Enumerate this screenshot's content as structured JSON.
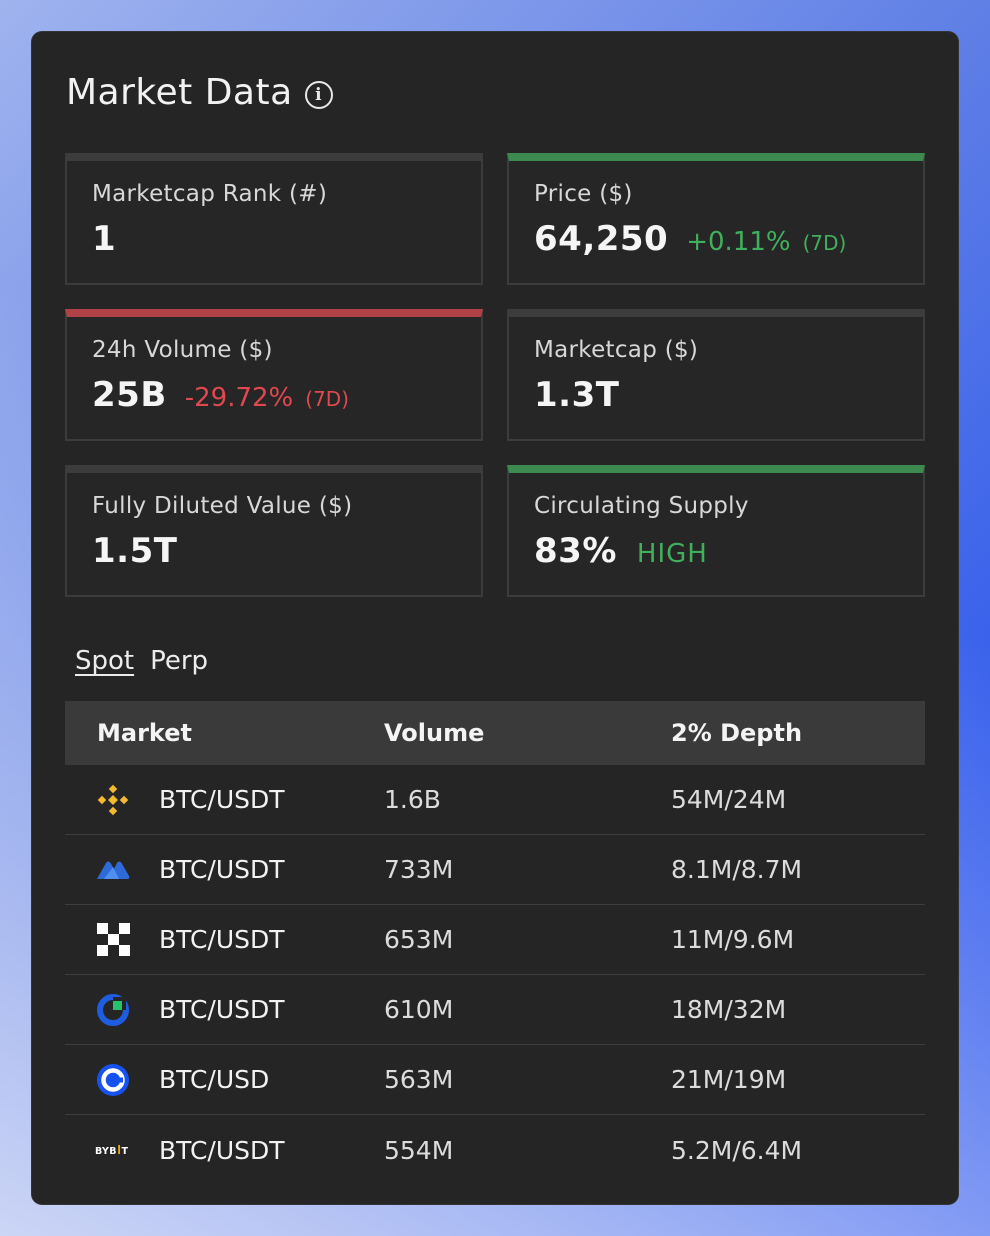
{
  "header": {
    "title": "Market Data",
    "info_icon": "info-icon"
  },
  "stats": [
    {
      "label": "Marketcap Rank (#)",
      "value": "1",
      "accent": "neutral"
    },
    {
      "label": "Price ($)",
      "value": "64,250",
      "change": "+0.11%",
      "period": "(7D)",
      "direction": "up",
      "accent": "green"
    },
    {
      "label": "24h Volume ($)",
      "value": "25B",
      "change": "-29.72%",
      "period": "(7D)",
      "direction": "down",
      "accent": "red"
    },
    {
      "label": "Marketcap ($)",
      "value": "1.3T",
      "accent": "neutral"
    },
    {
      "label": "Fully Diluted Value ($)",
      "value": "1.5T",
      "accent": "neutral"
    },
    {
      "label": "Circulating Supply",
      "value": "83%",
      "tag": "HIGH",
      "accent": "green"
    }
  ],
  "tabs": [
    {
      "label": "Spot",
      "active": true
    },
    {
      "label": "Perp",
      "active": false
    }
  ],
  "table": {
    "headers": {
      "market": "Market",
      "volume": "Volume",
      "depth": "2% Depth"
    },
    "rows": [
      {
        "exchange_icon": "binance-icon",
        "pair": "BTC/USDT",
        "volume": "1.6B",
        "depth": "54M/24M"
      },
      {
        "exchange_icon": "mexc-icon",
        "pair": "BTC/USDT",
        "volume": "733M",
        "depth": "8.1M/8.7M"
      },
      {
        "exchange_icon": "okx-icon",
        "pair": "BTC/USDT",
        "volume": "653M",
        "depth": "11M/9.6M"
      },
      {
        "exchange_icon": "kucoin-icon",
        "pair": "BTC/USDT",
        "volume": "610M",
        "depth": "18M/32M"
      },
      {
        "exchange_icon": "coinbase-icon",
        "pair": "BTC/USD",
        "volume": "563M",
        "depth": "21M/19M"
      },
      {
        "exchange_icon": "bybit-icon",
        "pair": "BTC/USDT",
        "volume": "554M",
        "depth": "5.2M/6.4M"
      }
    ]
  },
  "colors": {
    "card_bg": "#252525",
    "positive": "#41b05d",
    "negative": "#e0484f",
    "accent_green": "#3c8a4f",
    "accent_red": "#b04245",
    "binance": "#f3ba2f",
    "mexc": "#2f6bd8",
    "kucoin": "#1f5de0",
    "coinbase": "#1652f0"
  }
}
